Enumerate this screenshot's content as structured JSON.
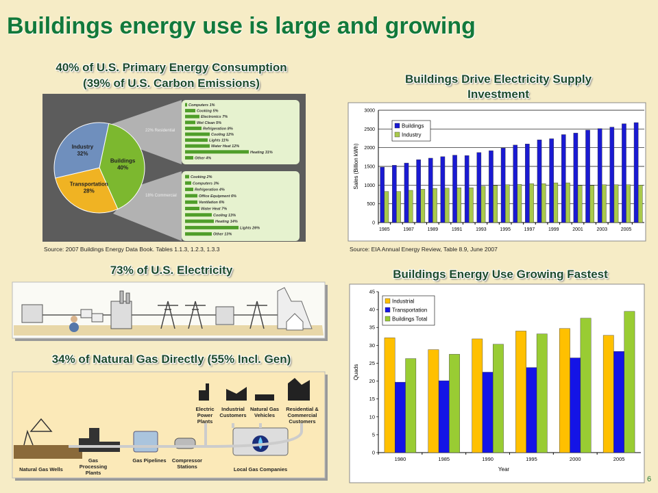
{
  "title": "Buildings energy use is large and growing",
  "page_number": "6",
  "electricity": {
    "heading": "73% of U.S. Electricity"
  },
  "gas": {
    "heading": "34% of Natural Gas Directly (55% Incl. Gen)",
    "labels": [
      "Electric Power Plants",
      "Industrial Customers",
      "Natural Gas Vehicles",
      "Residential & Commercial Customers",
      "Natural Gas Wells",
      "Gas Processing Plants",
      "Gas Pipelines",
      "Compressor Stations",
      "Local Gas Companies"
    ]
  },
  "chart_data": [
    {
      "type": "pie",
      "title": "40% of U.S. Primary Energy Consumption",
      "subtitle": "(39% of U.S. Carbon Emissions)",
      "categories": [
        "Industry",
        "Transportation",
        "Buildings"
      ],
      "values": [
        32,
        28,
        40
      ],
      "value_labels": [
        "32%",
        "28%",
        "40%"
      ],
      "colors": [
        "#6f8fbd",
        "#f0b323",
        "#7cb82f"
      ],
      "breakdowns": [
        {
          "label": "22% Residential",
          "categories": [
            "Computers",
            "Cooking",
            "Electronics",
            "Wet Clean",
            "Refrigeration",
            "Cooling",
            "Lights",
            "Water Heat",
            "Heating",
            "Other"
          ],
          "values": [
            1,
            5,
            7,
            5,
            8,
            12,
            11,
            12,
            31,
            4
          ],
          "value_labels": [
            "1%",
            "5%",
            "7%",
            "5%",
            "8%",
            "12%",
            "11%",
            "12%",
            "31%",
            "4%"
          ]
        },
        {
          "label": "18% Commercial",
          "categories": [
            "Cooking",
            "Computers",
            "Refrigeration",
            "Office Equipment",
            "Ventilation",
            "Water Heat",
            "Cooling",
            "Heating",
            "Lights",
            "Other"
          ],
          "values": [
            2,
            3,
            4,
            6,
            6,
            7,
            13,
            14,
            26,
            13
          ],
          "value_labels": [
            "2%",
            "3%",
            "4%",
            "6%",
            "6%",
            "7%",
            "13%",
            "14%",
            "26%",
            "13%"
          ]
        }
      ],
      "source": "Source: 2007 Buildings Energy Data Book. Tables 1.1.3, 1.2.3, 1.3.3"
    },
    {
      "type": "bar",
      "title": "Buildings Drive Electricity Supply Investment",
      "y_label": "Sales (Billion kWh)",
      "categories": [
        "1985",
        null,
        "1987",
        null,
        "1989",
        null,
        "1991",
        null,
        "1993",
        null,
        "1995",
        null,
        "1997",
        null,
        "1999",
        null,
        "2001",
        null,
        "2003",
        null,
        "2005",
        null
      ],
      "series": [
        {
          "name": "Buildings",
          "color": "#1a1ad2",
          "values": [
            1480,
            1530,
            1590,
            1680,
            1720,
            1760,
            1800,
            1790,
            1870,
            1920,
            1990,
            2070,
            2100,
            2210,
            2240,
            2350,
            2390,
            2470,
            2510,
            2550,
            2640,
            2670
          ]
        },
        {
          "name": "Industry",
          "color": "#a9c94c",
          "values": [
            830,
            830,
            860,
            890,
            910,
            920,
            930,
            930,
            970,
            990,
            1010,
            1020,
            1040,
            1040,
            1060,
            1060,
            990,
            990,
            1010,
            1010,
            1010,
            1000
          ]
        }
      ],
      "ylim": [
        0,
        3000
      ],
      "yticks": [
        0,
        500,
        1000,
        1500,
        2000,
        2500,
        3000
      ],
      "grid": true,
      "legend": "upper left",
      "source": "Source: EIA Annual Energy Review, Table 8.9, June 2007"
    },
    {
      "type": "bar",
      "title": "Buildings Energy Use Growing Fastest",
      "y_label": "Quads",
      "x_label": "Year",
      "categories": [
        "1980",
        "1985",
        "1990",
        "1995",
        "2000",
        "2005"
      ],
      "series": [
        {
          "name": "Industrial",
          "color": "#ffc000",
          "values": [
            32.1,
            28.8,
            31.8,
            34.0,
            34.7,
            32.8
          ]
        },
        {
          "name": "Transportation",
          "color": "#1414e6",
          "values": [
            19.7,
            20.1,
            22.5,
            23.8,
            26.5,
            28.3
          ]
        },
        {
          "name": "Buildings Total",
          "color": "#99cc33",
          "values": [
            26.3,
            27.5,
            30.3,
            33.2,
            37.6,
            39.5
          ]
        }
      ],
      "ylim": [
        0,
        45
      ],
      "yticks": [
        0,
        5,
        10,
        15,
        20,
        25,
        30,
        35,
        40,
        45
      ],
      "grid": false,
      "legend": "upper left"
    }
  ]
}
